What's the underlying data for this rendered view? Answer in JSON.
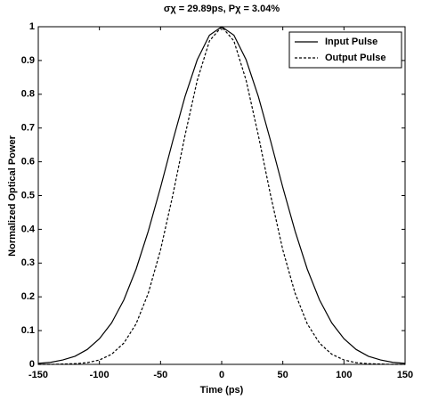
{
  "chart_data": {
    "type": "line",
    "title": "σχ = 29.89ps, Pχ = 3.04%",
    "x_label": "Time (ps)",
    "y_label": "Normalized Optical Power",
    "x": [
      -150,
      -140,
      -130,
      -120,
      -110,
      -100,
      -90,
      -80,
      -70,
      -60,
      -50,
      -40,
      -30,
      -20,
      -10,
      0,
      10,
      20,
      30,
      40,
      50,
      60,
      70,
      80,
      90,
      100,
      110,
      120,
      130,
      140,
      150
    ],
    "series": [
      {
        "name": "Input Pulse",
        "color": "#000000",
        "linestyle": "solid",
        "values": [
          0.003,
          0.006,
          0.013,
          0.024,
          0.044,
          0.076,
          0.123,
          0.191,
          0.282,
          0.395,
          0.524,
          0.662,
          0.793,
          0.902,
          0.975,
          1,
          0.975,
          0.902,
          0.793,
          0.662,
          0.524,
          0.395,
          0.282,
          0.191,
          0.123,
          0.076,
          0.044,
          0.024,
          0.013,
          0.006,
          0.003
        ]
      },
      {
        "name": "Output Pulse",
        "color": "#000000",
        "linestyle": "dashed",
        "values": [
          0,
          0,
          0.001,
          0.002,
          0.005,
          0.013,
          0.03,
          0.063,
          0.12,
          0.211,
          0.339,
          0.501,
          0.678,
          0.841,
          0.958,
          1,
          0.958,
          0.841,
          0.678,
          0.501,
          0.339,
          0.211,
          0.12,
          0.063,
          0.03,
          0.013,
          0.005,
          0.002,
          0.001,
          0,
          0
        ]
      }
    ],
    "xlim": [
      -150,
      150
    ],
    "xticks": [
      -150,
      -100,
      -50,
      0,
      50,
      100,
      150
    ],
    "ylim": [
      0,
      1
    ],
    "yticks": [
      0,
      0.1,
      0.2,
      0.3,
      0.4,
      0.5,
      0.6,
      0.7,
      0.8,
      0.9,
      1
    ],
    "grid": false,
    "legend": "upper right"
  }
}
